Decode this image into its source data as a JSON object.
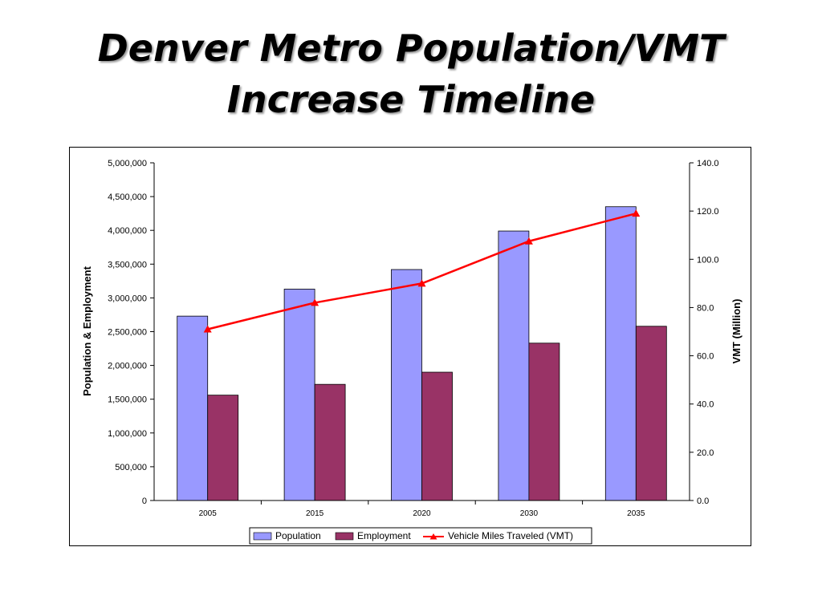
{
  "slide": {
    "title_line1": "Denver Metro Population/VMT",
    "title_line2": "Increase Timeline"
  },
  "chart_data": {
    "type": "bar",
    "categories": [
      "2005",
      "2015",
      "2020",
      "2030",
      "2035"
    ],
    "series": [
      {
        "name": "Population",
        "type": "bar",
        "axis": "left",
        "color": "#9999ff",
        "values": [
          2730000,
          3130000,
          3420000,
          3990000,
          4350000
        ]
      },
      {
        "name": "Employment",
        "type": "bar",
        "axis": "left",
        "color": "#993366",
        "values": [
          1560000,
          1720000,
          1900000,
          2330000,
          2580000
        ]
      },
      {
        "name": "Vehicle Miles Traveled (VMT)",
        "type": "line",
        "axis": "right",
        "color": "#ff0000",
        "marker": "triangle",
        "values": [
          71.0,
          82.0,
          90.0,
          107.5,
          119.0
        ]
      }
    ],
    "ylabel": "Population & Employment",
    "ylabel_right": "VMT (Million)",
    "ylim": [
      0,
      5000000
    ],
    "ylim_right": [
      0,
      140
    ],
    "yticks": [
      "0",
      "500,000",
      "1,000,000",
      "1,500,000",
      "2,000,000",
      "2,500,000",
      "3,000,000",
      "3,500,000",
      "4,000,000",
      "4,500,000",
      "5,000,000"
    ],
    "yticks_right": [
      "0.0",
      "20.0",
      "40.0",
      "60.0",
      "80.0",
      "100.0",
      "120.0",
      "140.0"
    ],
    "grid": false,
    "legend_position": "bottom"
  }
}
